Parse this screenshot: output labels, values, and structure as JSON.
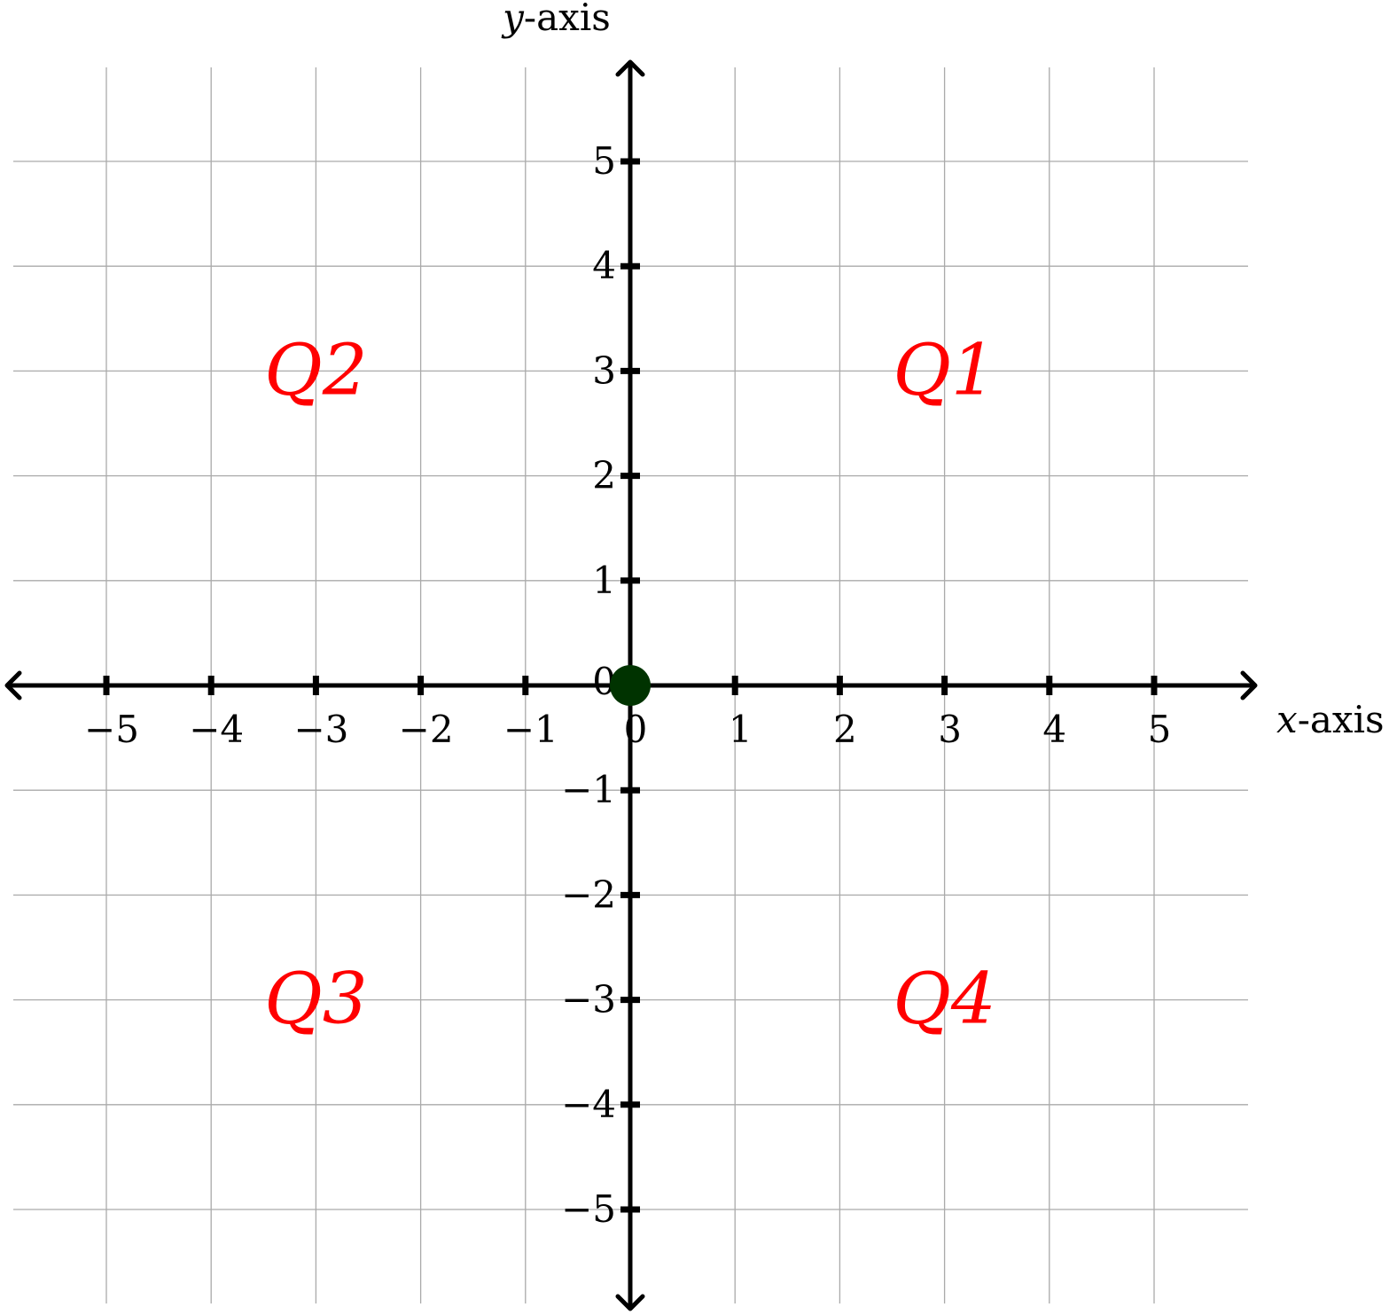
{
  "chart_data": {
    "type": "scatter",
    "title": "",
    "xlabel": "x-axis",
    "ylabel": "y-axis",
    "xlim": [
      -6,
      6
    ],
    "ylim": [
      -6,
      6
    ],
    "grid": true,
    "x_ticks": [
      -5,
      -4,
      -3,
      -2,
      -1,
      0,
      1,
      2,
      3,
      4,
      5
    ],
    "y_ticks": [
      -5,
      -4,
      -3,
      -2,
      -1,
      0,
      1,
      2,
      3,
      4,
      5
    ],
    "x_tick_labels": [
      "−5",
      "−4",
      "−3",
      "−2",
      "−1",
      "0",
      "1",
      "2",
      "3",
      "4",
      "5"
    ],
    "y_tick_labels": [
      "−5",
      "−4",
      "−3",
      "−2",
      "−1",
      "0",
      "1",
      "2",
      "3",
      "4",
      "5"
    ],
    "points": [
      {
        "name": "origin",
        "x": 0,
        "y": 0,
        "color": "#003300"
      }
    ],
    "annotations": [
      {
        "text": "Q1",
        "x": 3,
        "y": 3
      },
      {
        "text": "Q2",
        "x": -3,
        "y": 3
      },
      {
        "text": "Q3",
        "x": -3,
        "y": -3
      },
      {
        "text": "Q4",
        "x": 3,
        "y": -3
      }
    ]
  },
  "axis_titles": {
    "x_var": "x",
    "x_suffix": "-axis",
    "y_var": "y",
    "y_suffix": "-axis"
  },
  "colors": {
    "grid": "#aaaaaa",
    "axis": "#000000",
    "quadrant_label": "#ff0000",
    "origin_point": "#003300"
  }
}
